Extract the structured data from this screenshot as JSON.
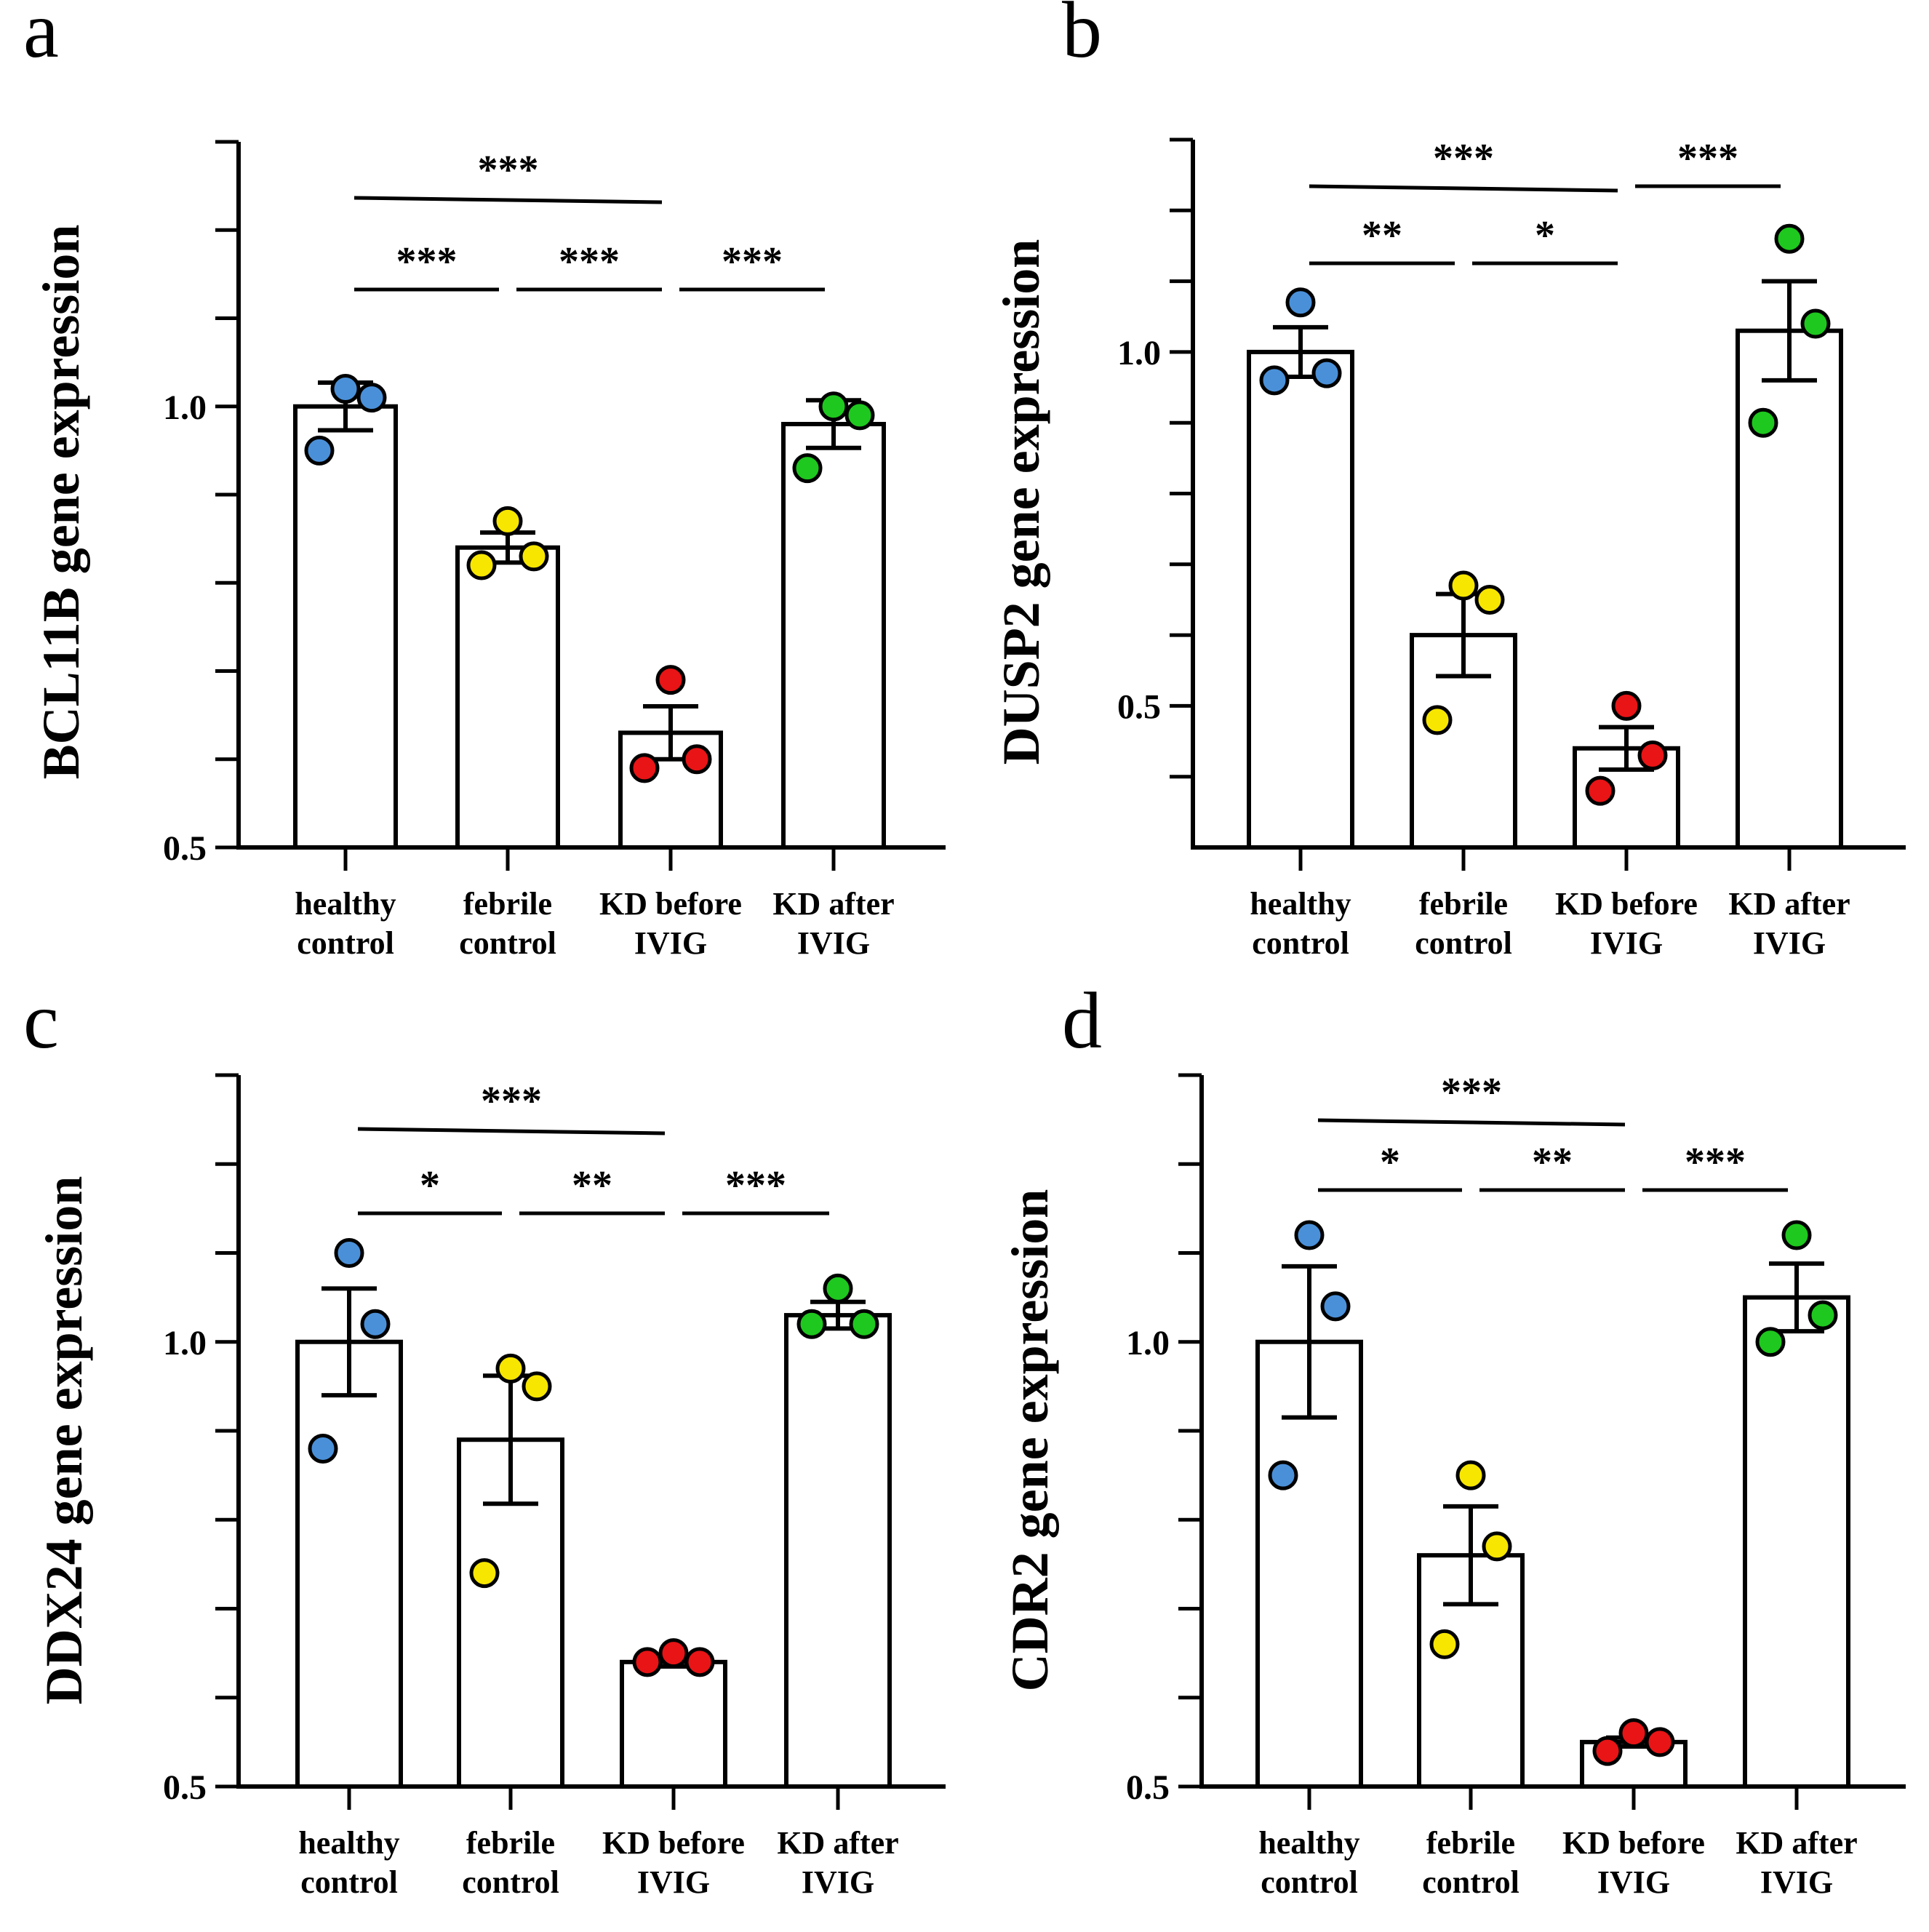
{
  "chart_data": [
    {
      "type": "bar",
      "panel": "a",
      "ylabel": "BCL11B gene expression",
      "categories": [
        [
          "healthy",
          "control"
        ],
        [
          "febrile",
          "control"
        ],
        [
          "KD before",
          "IVIG"
        ],
        [
          "KD after",
          "IVIG"
        ]
      ],
      "yticks": [
        0.5,
        1.0
      ],
      "ytick_labels": [
        "0.5",
        "1.0"
      ],
      "yminor": [
        0.6,
        0.7,
        0.8,
        0.9,
        1.1,
        1.2,
        1.3
      ],
      "ylim": [
        0.5,
        1.3
      ],
      "series": [
        {
          "values": [
            1.0,
            0.84,
            0.63,
            0.98
          ],
          "errors": [
            0.027,
            0.017,
            0.03,
            0.027
          ],
          "points": [
            [
              1.02,
              1.01,
              0.95
            ],
            [
              0.87,
              0.83,
              0.82
            ],
            [
              0.69,
              0.6,
              0.59
            ],
            [
              1.0,
              0.99,
              0.93
            ]
          ],
          "colors": [
            "#4a90d9",
            "#f7e600",
            "#e81416",
            "#1ec81e"
          ]
        }
      ],
      "comparisons": [
        {
          "from": 0,
          "to": 2,
          "label": "***"
        },
        {
          "from": 0,
          "to": 1,
          "label": "***"
        },
        {
          "from": 1,
          "to": 2,
          "label": "***"
        },
        {
          "from": 2,
          "to": 3,
          "label": "***"
        }
      ]
    },
    {
      "type": "bar",
      "panel": "b",
      "ylabel": "DUSP2 gene expression",
      "categories": [
        [
          "healthy",
          "control"
        ],
        [
          "febrile",
          "control"
        ],
        [
          "KD before",
          "IVIG"
        ],
        [
          "KD after",
          "IVIG"
        ]
      ],
      "yticks": [
        0.5,
        1.0
      ],
      "ytick_labels": [
        "0.5",
        "1.0"
      ],
      "yminor": [
        0.4,
        0.6,
        0.7,
        0.8,
        0.9,
        1.1,
        1.2,
        1.3
      ],
      "ylim": [
        0.3,
        1.3
      ],
      "series": [
        {
          "values": [
            1.0,
            0.6,
            0.44,
            1.03
          ],
          "errors": [
            0.035,
            0.058,
            0.03,
            0.07
          ],
          "points": [
            [
              1.07,
              0.97,
              0.96
            ],
            [
              0.67,
              0.65,
              0.48
            ],
            [
              0.5,
              0.43,
              0.38
            ],
            [
              1.16,
              1.04,
              0.9
            ]
          ],
          "colors": [
            "#4a90d9",
            "#f7e600",
            "#e81416",
            "#1ec81e"
          ]
        }
      ],
      "comparisons": [
        {
          "from": 0,
          "to": 2,
          "label": "***"
        },
        {
          "from": 2,
          "to": 3,
          "label": "***"
        },
        {
          "from": 0,
          "to": 1,
          "label": "**"
        },
        {
          "from": 1,
          "to": 2,
          "label": "*"
        }
      ]
    },
    {
      "type": "bar",
      "panel": "c",
      "ylabel": "DDX24 gene expression",
      "categories": [
        [
          "healthy",
          "control"
        ],
        [
          "febrile",
          "control"
        ],
        [
          "KD before",
          "IVIG"
        ],
        [
          "KD after",
          "IVIG"
        ]
      ],
      "yticks": [
        0.5,
        1.0
      ],
      "ytick_labels": [
        "0.5",
        "1.0"
      ],
      "yminor": [
        0.6,
        0.7,
        0.8,
        0.9,
        1.1,
        1.2,
        1.3
      ],
      "ylim": [
        0.5,
        1.3
      ],
      "series": [
        {
          "values": [
            1.0,
            0.89,
            0.64,
            1.03
          ],
          "errors": [
            0.06,
            0.072,
            0.005,
            0.015
          ],
          "points": [
            [
              1.1,
              1.02,
              0.88
            ],
            [
              0.97,
              0.95,
              0.74
            ],
            [
              0.65,
              0.64,
              0.64
            ],
            [
              1.06,
              1.02,
              1.02
            ]
          ],
          "colors": [
            "#4a90d9",
            "#f7e600",
            "#e81416",
            "#1ec81e"
          ]
        }
      ],
      "comparisons": [
        {
          "from": 0,
          "to": 2,
          "label": "***"
        },
        {
          "from": 0,
          "to": 1,
          "label": "*"
        },
        {
          "from": 1,
          "to": 2,
          "label": "**"
        },
        {
          "from": 2,
          "to": 3,
          "label": "***"
        }
      ]
    },
    {
      "type": "bar",
      "panel": "d",
      "ylabel": "CDR2 gene expression",
      "categories": [
        [
          "healthy",
          "control"
        ],
        [
          "febrile",
          "control"
        ],
        [
          "KD before",
          "IVIG"
        ],
        [
          "KD after",
          "IVIG"
        ]
      ],
      "yticks": [
        0.5,
        1.0
      ],
      "ytick_labels": [
        "0.5",
        "1.0"
      ],
      "yminor": [
        0.6,
        0.7,
        0.8,
        0.9,
        1.1,
        1.2,
        1.3
      ],
      "ylim": [
        0.5,
        1.3
      ],
      "series": [
        {
          "values": [
            1.0,
            0.76,
            0.55,
            1.05
          ],
          "errors": [
            0.085,
            0.055,
            0.005,
            0.038
          ],
          "points": [
            [
              1.12,
              1.04,
              0.85
            ],
            [
              0.85,
              0.77,
              0.66
            ],
            [
              0.56,
              0.55,
              0.54
            ],
            [
              1.12,
              1.03,
              1.0
            ]
          ],
          "colors": [
            "#4a90d9",
            "#f7e600",
            "#e81416",
            "#1ec81e"
          ]
        }
      ],
      "comparisons": [
        {
          "from": 0,
          "to": 2,
          "label": "***"
        },
        {
          "from": 0,
          "to": 1,
          "label": "*"
        },
        {
          "from": 1,
          "to": 2,
          "label": "**"
        },
        {
          "from": 2,
          "to": 3,
          "label": "***"
        }
      ]
    }
  ]
}
